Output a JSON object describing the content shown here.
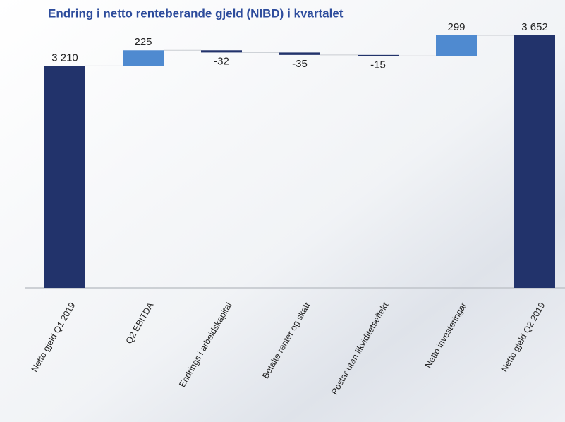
{
  "chart_data": {
    "type": "waterfall",
    "title": "Endring i netto renteberande gjeld (NIBD) i kvartalet",
    "categories": [
      "Netto gjeld Q1 2019",
      "Q2 EBITDA",
      "Endrings i arbeidskapital",
      "Betalte renter og skatt",
      "Postar utan likviditetseffekt",
      "Netto investeringar",
      "Netto gjeld Q2 2019"
    ],
    "values": [
      3210,
      225,
      -32,
      -35,
      -15,
      299,
      3652
    ],
    "value_labels": [
      "3 210",
      "225",
      "-32",
      "-35",
      "-15",
      "299",
      "3 652"
    ],
    "colors": {
      "total": "#22336b",
      "increase": "#4f8ad0",
      "decrease": "#22336b"
    }
  }
}
